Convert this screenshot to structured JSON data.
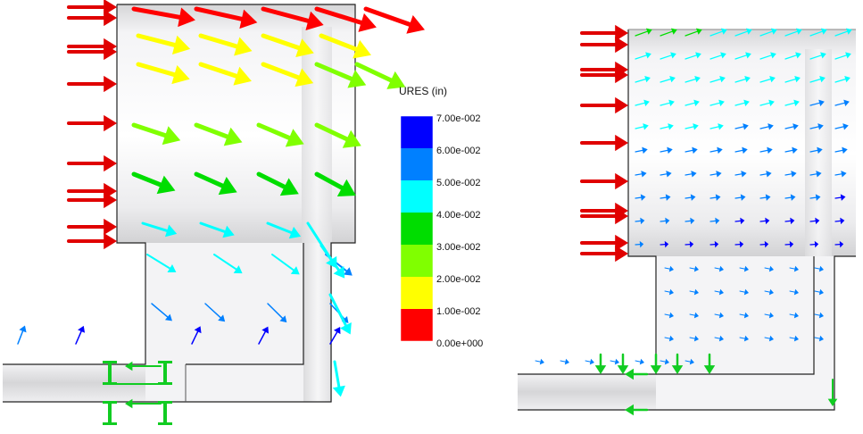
{
  "legend": {
    "title": "URES (in)",
    "labels": [
      "7.00e-002",
      "6.00e-002",
      "5.00e-002",
      "4.00e-002",
      "3.00e-002",
      "2.00e-002",
      "1.00e-002",
      "0.00e+000"
    ],
    "colors": [
      "#ff0000",
      "#ffff00",
      "#80ff00",
      "#00dd00",
      "#00ffff",
      "#0080ff",
      "#0000ff"
    ]
  },
  "colors": {
    "load_arrow": "#e00000",
    "fixture_green": "#11cc22",
    "model_edge": "#222222",
    "model_face": "#e8e8ea"
  }
}
